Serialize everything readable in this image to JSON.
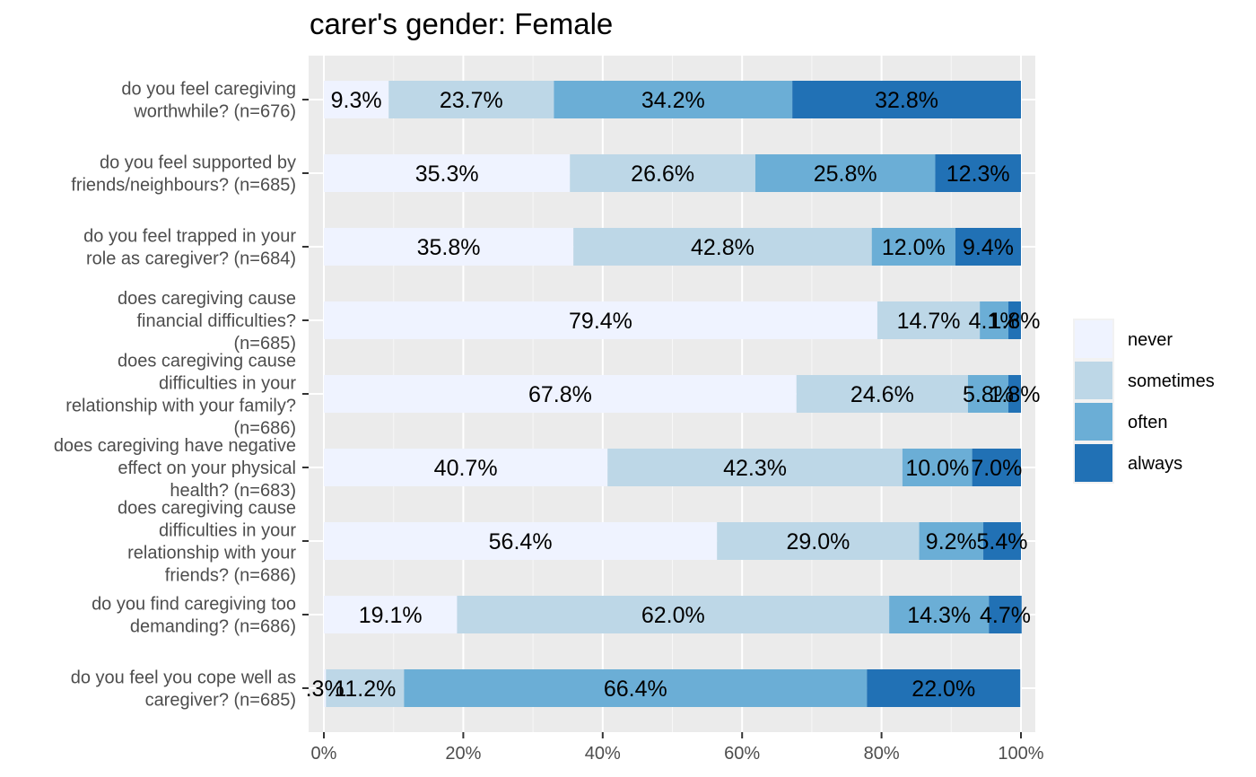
{
  "chart_data": {
    "type": "bar",
    "orientation": "horizontal",
    "stacked": true,
    "title": "carer's gender: Female",
    "xlabel": "",
    "ylabel": "",
    "xlim": [
      0,
      100
    ],
    "x_ticks": [
      "0%",
      "20%",
      "40%",
      "60%",
      "80%",
      "100%"
    ],
    "grid": true,
    "legend_position": "right",
    "categories": [
      [
        "do you feel caregiving",
        "worthwhile? (n=676)"
      ],
      [
        "do you feel supported by",
        "friends/neighbours? (n=685)"
      ],
      [
        "do you feel trapped in your",
        "role as caregiver? (n=684)"
      ],
      [
        "does caregiving cause",
        "financial difficulties?",
        "(n=685)"
      ],
      [
        "does caregiving cause",
        "difficulties in your",
        "relationship with your family?",
        "(n=686)"
      ],
      [
        "does caregiving have negative",
        "effect on your physical",
        "health? (n=683)"
      ],
      [
        "does caregiving cause",
        "difficulties in your",
        "relationship with your",
        "friends? (n=686)"
      ],
      [
        "do you find caregiving too",
        "demanding? (n=686)"
      ],
      [
        "do you feel you cope well as",
        "caregiver? (n=685)"
      ]
    ],
    "series": [
      {
        "name": "never",
        "color": "#eff3ff",
        "values": [
          9.3,
          35.3,
          35.8,
          79.4,
          67.8,
          40.7,
          56.4,
          19.1,
          0.3
        ],
        "labels": [
          "9.3%",
          "35.3%",
          "35.8%",
          "79.4%",
          "67.8%",
          "40.7%",
          "56.4%",
          "19.1%",
          ".3%"
        ]
      },
      {
        "name": "sometimes",
        "color": "#bdd7e7",
        "values": [
          23.7,
          26.6,
          42.8,
          14.7,
          24.6,
          42.3,
          29.0,
          62.0,
          11.2
        ],
        "labels": [
          "23.7%",
          "26.6%",
          "42.8%",
          "14.7%",
          "24.6%",
          "42.3%",
          "29.0%",
          "62.0%",
          "11.2%"
        ]
      },
      {
        "name": "often",
        "color": "#6baed6",
        "values": [
          34.2,
          25.8,
          12.0,
          4.1,
          5.8,
          10.0,
          9.2,
          14.3,
          66.4
        ],
        "labels": [
          "34.2%",
          "25.8%",
          "12.0%",
          "4.1%",
          "5.8%",
          "10.0%",
          "9.2%",
          "14.3%",
          "66.4%"
        ]
      },
      {
        "name": "always",
        "color": "#2171b5",
        "values": [
          32.8,
          12.3,
          9.4,
          1.8,
          1.8,
          7.0,
          5.4,
          4.7,
          22.0
        ],
        "labels": [
          "32.8%",
          "12.3%",
          "9.4%",
          "1.8%",
          "1.8%",
          "7.0%",
          "5.4%",
          "4.7%",
          "22.0%"
        ]
      }
    ]
  }
}
